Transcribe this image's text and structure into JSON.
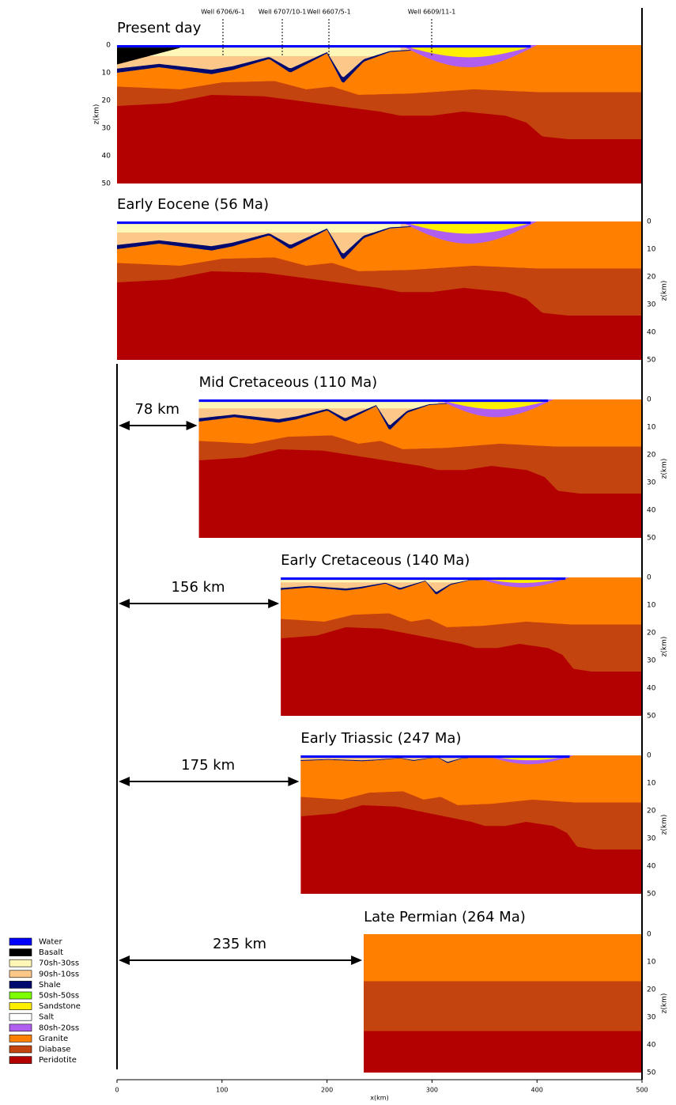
{
  "wells": [
    "Well 6706/6-1",
    "Well 6707/10-1",
    "Well 6607/5-1",
    "Well 6609/11-1"
  ],
  "panels": [
    {
      "title": "Present day"
    },
    {
      "title": "Early Eocene (56 Ma)"
    },
    {
      "title": "Mid Cretaceous (110 Ma)",
      "offset": {
        "value": 78,
        "label": "78 km"
      }
    },
    {
      "title": "Early Cretaceous (140 Ma)",
      "offset": {
        "value": 156,
        "label": "156 km"
      }
    },
    {
      "title": "Early Triassic (247 Ma)",
      "offset": {
        "value": 175,
        "label": "175 km"
      }
    },
    {
      "title": "Late Permian (264 Ma)",
      "offset": {
        "value": 235,
        "label": "235 km"
      }
    }
  ],
  "z_axis": {
    "label": "z(km)",
    "ticks": [
      0,
      10,
      20,
      30,
      40,
      50
    ]
  },
  "x_axis": {
    "label": "x(km)",
    "ticks": [
      0,
      100,
      200,
      300,
      400,
      500
    ]
  },
  "legend": [
    {
      "label": "Water",
      "color": "#0000ff"
    },
    {
      "label": "Basalt",
      "color": "#000000"
    },
    {
      "label": "70sh-30ss",
      "color": "#fff7b8"
    },
    {
      "label": "90sh-10ss",
      "color": "#fbc88a"
    },
    {
      "label": "Shale",
      "color": "#000a6e"
    },
    {
      "label": "50sh-50ss",
      "color": "#7dff00"
    },
    {
      "label": "Sandstone",
      "color": "#ffef00"
    },
    {
      "label": "Salt",
      "color": "#ffffff"
    },
    {
      "label": "80sh-20ss",
      "color": "#b05ef0"
    },
    {
      "label": "Granite",
      "color": "#ff8000"
    },
    {
      "label": "Diabase",
      "color": "#c4440f"
    },
    {
      "label": "Peridotite",
      "color": "#b30000"
    }
  ]
}
